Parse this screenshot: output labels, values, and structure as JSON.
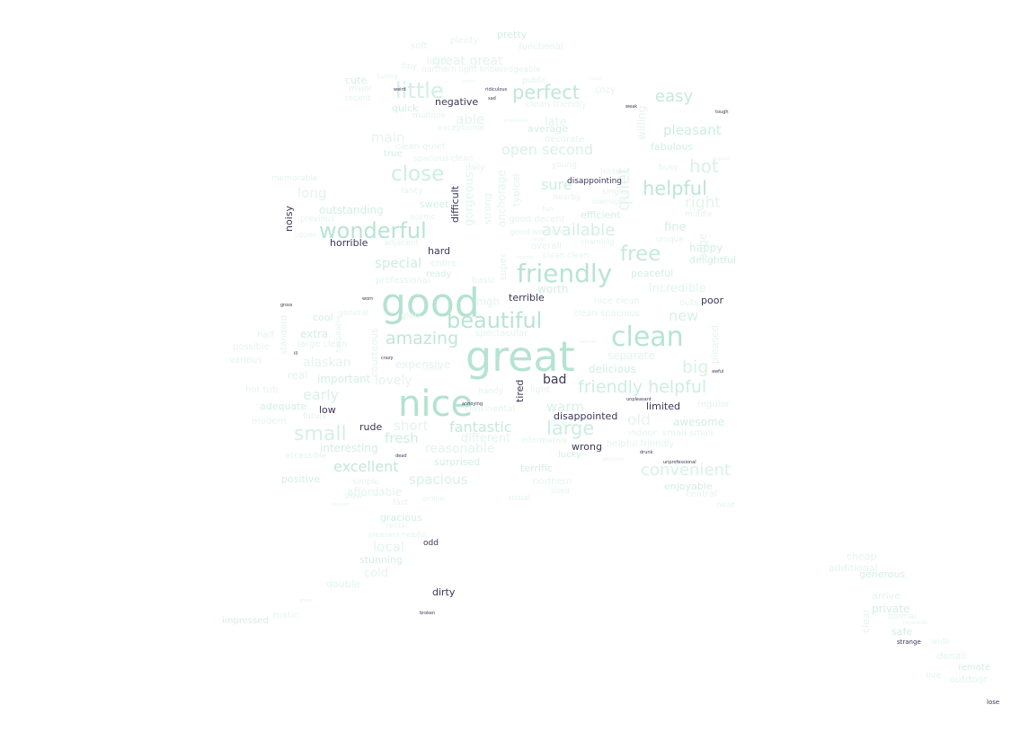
{
  "words": [
    {
      "text": "great",
      "color": "#b6e3d2"
    },
    {
      "text": "good",
      "color": "#b4e2d1"
    },
    {
      "text": "nice",
      "color": "#b3e2d0"
    },
    {
      "text": "clean",
      "color": "#b7e4d3"
    },
    {
      "text": "friendly",
      "color": "#b8e4d3"
    },
    {
      "text": "beautiful",
      "color": "#b8e4d3"
    },
    {
      "text": "wonderful",
      "color": "#b8e4d3"
    },
    {
      "text": "helpful",
      "color": "#bde6d6"
    },
    {
      "text": "close",
      "color": "#cdeee1"
    },
    {
      "text": "perfect",
      "color": "#c0e7d8"
    },
    {
      "text": "amazing",
      "color": "#c0e7d8"
    },
    {
      "text": "small",
      "color": "#d6f0e5"
    },
    {
      "text": "little",
      "color": "#d4efe4"
    },
    {
      "text": "friendly helpful",
      "color": "#cdeee1"
    },
    {
      "text": "excellent",
      "color": "#c3e8d9"
    },
    {
      "text": "large",
      "color": "#ccede0"
    },
    {
      "text": "fantastic",
      "color": "#c6e9db"
    },
    {
      "text": "available",
      "color": "#d4efe4"
    },
    {
      "text": "free",
      "color": "#c6e9db"
    },
    {
      "text": "convenient",
      "color": "#d9f1e7"
    },
    {
      "text": "easy",
      "color": "#c6e9db"
    },
    {
      "text": "hot",
      "color": "#d9f1e7"
    },
    {
      "text": "big",
      "color": "#d9f1e7"
    },
    {
      "text": "new",
      "color": "#d9f1e7"
    },
    {
      "text": "open second",
      "color": "#d9f1e7"
    },
    {
      "text": "early",
      "color": "#d9f1e7"
    },
    {
      "text": "pleasant",
      "color": "#cdeee1"
    },
    {
      "text": "sure",
      "color": "#cdeee1"
    },
    {
      "text": "warm",
      "color": "#d9f1e7"
    },
    {
      "text": "fresh",
      "color": "#cdeee1"
    },
    {
      "text": "special",
      "color": "#cdeee1"
    },
    {
      "text": "spacious",
      "color": "#d9f1e7"
    },
    {
      "text": "local",
      "color": "#e4f5ed"
    },
    {
      "text": "long",
      "color": "#e4f5ed"
    },
    {
      "text": "able",
      "color": "#e4f5ed"
    },
    {
      "text": "main",
      "color": "#e4f5ed"
    },
    {
      "text": "short",
      "color": "#e4f5ed"
    },
    {
      "text": "cold",
      "color": "#e4f5ed"
    },
    {
      "text": "old",
      "color": "#e4f5ed"
    },
    {
      "text": "right",
      "color": "#e4f5ed"
    },
    {
      "text": "great great",
      "color": "#e4f5ed"
    },
    {
      "text": "alaskan",
      "color": "#e4f5ed"
    },
    {
      "text": "lovely",
      "color": "#e4f5ed"
    },
    {
      "text": "outstanding",
      "color": "#d4efe4"
    },
    {
      "text": "delicious",
      "color": "#d4efe4"
    },
    {
      "text": "fine",
      "color": "#d4efe4"
    },
    {
      "text": "happy",
      "color": "#d4efe4"
    },
    {
      "text": "important",
      "color": "#d4efe4"
    },
    {
      "text": "awesome",
      "color": "#d4efe4"
    },
    {
      "text": "interesting",
      "color": "#d4efe4"
    },
    {
      "text": "positive",
      "color": "#d4efe4"
    },
    {
      "text": "surprised",
      "color": "#d4efe4"
    },
    {
      "text": "terrific",
      "color": "#d4efe4"
    },
    {
      "text": "stunning",
      "color": "#d4efe4"
    },
    {
      "text": "gracious",
      "color": "#d4efe4"
    },
    {
      "text": "enjoyable",
      "color": "#d4efe4"
    },
    {
      "text": "adequate",
      "color": "#d4efe4"
    },
    {
      "text": "efficient",
      "color": "#d4efe4"
    },
    {
      "text": "peaceful",
      "color": "#d4efe4"
    },
    {
      "text": "fabulous",
      "color": "#d4efe4"
    },
    {
      "text": "worth",
      "color": "#d4efe4"
    },
    {
      "text": "cool",
      "color": "#d4efe4"
    },
    {
      "text": "extra",
      "color": "#d4efe4"
    },
    {
      "text": "pretty",
      "color": "#d4efe4"
    },
    {
      "text": "cute",
      "color": "#d4efe4"
    },
    {
      "text": "quick",
      "color": "#d4efe4"
    },
    {
      "text": "average",
      "color": "#d4efe4"
    },
    {
      "text": "safe",
      "color": "#d4efe4"
    },
    {
      "text": "generous",
      "color": "#d4efe4"
    },
    {
      "text": "private",
      "color": "#d4efe4"
    },
    {
      "text": "remote",
      "color": "#d4efe4"
    },
    {
      "text": "impressed",
      "color": "#d4efe4"
    },
    {
      "text": "lucky",
      "color": "#d4efe4"
    },
    {
      "text": "ready",
      "color": "#d4efe4"
    },
    {
      "text": "true",
      "color": "#d4efe4"
    },
    {
      "text": "sweet",
      "color": "#d4efe4"
    },
    {
      "text": "delightful",
      "color": "#d4efe4"
    },
    {
      "text": "reasonable",
      "color": "#e4f5ed"
    },
    {
      "text": "expensive",
      "color": "#e4f5ed"
    },
    {
      "text": "different",
      "color": "#e4f5ed"
    },
    {
      "text": "incredible",
      "color": "#e4f5ed"
    },
    {
      "text": "separate",
      "color": "#e4f5ed"
    },
    {
      "text": "late",
      "color": "#e4f5ed"
    },
    {
      "text": "real",
      "color": "#e4f5ed"
    },
    {
      "text": "double",
      "color": "#e4f5ed"
    },
    {
      "text": "affordable",
      "color": "#e4f5ed"
    },
    {
      "text": "northern",
      "color": "#e4f5ed"
    },
    {
      "text": "central",
      "color": "#e4f5ed"
    },
    {
      "text": "additional",
      "color": "#e4f5ed"
    },
    {
      "text": "arrive",
      "color": "#e4f5ed"
    },
    {
      "text": "outdoor",
      "color": "#e4f5ed"
    },
    {
      "text": "denali",
      "color": "#e4f5ed"
    },
    {
      "text": "cheap",
      "color": "#e4f5ed"
    },
    {
      "text": "rustic",
      "color": "#e4f5ed"
    },
    {
      "text": "plenty",
      "color": "#e4f5ed"
    },
    {
      "text": "soft",
      "color": "#e4f5ed"
    },
    {
      "text": "functional",
      "color": "#e4f5ed"
    },
    {
      "text": "loud",
      "color": "#e4f5ed"
    },
    {
      "text": "northern light knowledgeable",
      "color": "#e4f5ed"
    },
    {
      "text": "tiny",
      "color": "#e4f5ed"
    },
    {
      "text": "public",
      "color": "#e4f5ed"
    },
    {
      "text": "cozy",
      "color": "#e4f5ed"
    },
    {
      "text": "major",
      "color": "#e4f5ed"
    },
    {
      "text": "recent",
      "color": "#e4f5ed"
    },
    {
      "text": "sunny",
      "color": "#e4f5ed"
    },
    {
      "text": "clean friendly",
      "color": "#e4f5ed"
    },
    {
      "text": "multiple",
      "color": "#e4f5ed"
    },
    {
      "text": "exceptional",
      "color": "#e4f5ed"
    },
    {
      "text": "decorate",
      "color": "#e4f5ed"
    },
    {
      "text": "clean quiet",
      "color": "#e4f5ed"
    },
    {
      "text": "spacious clean",
      "color": "#e4f5ed"
    },
    {
      "text": "young",
      "color": "#e4f5ed"
    },
    {
      "text": "fancy",
      "color": "#e4f5ed"
    },
    {
      "text": "daily",
      "color": "#e4f5ed"
    },
    {
      "text": "memorable",
      "color": "#e4f5ed"
    },
    {
      "text": "previous",
      "color": "#e4f5ed"
    },
    {
      "text": "scenic",
      "color": "#e4f5ed"
    },
    {
      "text": "upper",
      "color": "#e4f5ed"
    },
    {
      "text": "adjacent",
      "color": "#e4f5ed"
    },
    {
      "text": "good western",
      "color": "#e4f5ed"
    },
    {
      "text": "overall",
      "color": "#e4f5ed"
    },
    {
      "text": "unique",
      "color": "#e4f5ed"
    },
    {
      "text": "middle",
      "color": "#e4f5ed"
    },
    {
      "text": "single",
      "color": "#e4f5ed"
    },
    {
      "text": "nearby",
      "color": "#e4f5ed"
    },
    {
      "text": "fun",
      "color": "#e4f5ed"
    },
    {
      "text": "overnight",
      "color": "#e4f5ed"
    },
    {
      "text": "historic",
      "color": "#e4f5ed"
    },
    {
      "text": "busy",
      "color": "#e4f5ed"
    },
    {
      "text": "good decent",
      "color": "#e4f5ed"
    },
    {
      "text": "charming",
      "color": "#e4f5ed"
    },
    {
      "text": "clean clean",
      "color": "#e4f5ed"
    },
    {
      "text": "entire",
      "color": "#e4f5ed"
    },
    {
      "text": "professional",
      "color": "#e4f5ed"
    },
    {
      "text": "basic",
      "color": "#e4f5ed"
    },
    {
      "text": "high",
      "color": "#e4f5ed"
    },
    {
      "text": "nice clean",
      "color": "#e4f5ed"
    },
    {
      "text": "outside",
      "color": "#e4f5ed"
    },
    {
      "text": "clean spacious",
      "color": "#e4f5ed"
    },
    {
      "text": "spectacular",
      "color": "#e4f5ed"
    },
    {
      "text": "general",
      "color": "#e4f5ed"
    },
    {
      "text": "glad",
      "color": "#e4f5ed"
    },
    {
      "text": "half",
      "color": "#e4f5ed"
    },
    {
      "text": "large clean",
      "color": "#e4f5ed"
    },
    {
      "text": "possible",
      "color": "#e4f5ed"
    },
    {
      "text": "various",
      "color": "#e4f5ed"
    },
    {
      "text": "hot tub",
      "color": "#e4f5ed"
    },
    {
      "text": "modern",
      "color": "#e4f5ed"
    },
    {
      "text": "future",
      "color": "#e4f5ed"
    },
    {
      "text": "accessible",
      "color": "#e4f5ed"
    },
    {
      "text": "simple",
      "color": "#e4f5ed"
    },
    {
      "text": "slow",
      "color": "#e4f5ed"
    },
    {
      "text": "fast",
      "color": "#e4f5ed"
    },
    {
      "text": "usual",
      "color": "#e4f5ed"
    },
    {
      "text": "neat",
      "color": "#e4f5ed"
    },
    {
      "text": "indoor",
      "color": "#e4f5ed"
    },
    {
      "text": "small small",
      "color": "#e4f5ed"
    },
    {
      "text": "helpful friendly",
      "color": "#e4f5ed"
    },
    {
      "text": "dry",
      "color": "#e4f5ed"
    },
    {
      "text": "informative",
      "color": "#e4f5ed"
    },
    {
      "text": "handy",
      "color": "#e4f5ed"
    },
    {
      "text": "light",
      "color": "#e4f5ed"
    },
    {
      "text": "regular",
      "color": "#e4f5ed"
    },
    {
      "text": "continental",
      "color": "#e4f5ed"
    },
    {
      "text": "normal",
      "color": "#e4f5ed"
    },
    {
      "text": "live",
      "color": "#e4f5ed"
    },
    {
      "text": "wide",
      "color": "#e4f5ed"
    },
    {
      "text": "pleasant helpful",
      "color": "#e4f5ed"
    },
    {
      "text": "rental",
      "color": "#e4f5ed"
    },
    {
      "text": "sized",
      "color": "#e4f5ed"
    },
    {
      "text": "online",
      "color": "#e4f5ed"
    },
    {
      "text": "quiet",
      "color": "#e4f5ed"
    },
    {
      "text": "gorgeous",
      "color": "#e4f5ed"
    },
    {
      "text": "strong",
      "color": "#e4f5ed"
    },
    {
      "text": "typical",
      "color": "#e4f5ed"
    },
    {
      "text": "anchorage",
      "color": "#e4f5ed"
    },
    {
      "text": "super",
      "color": "#e4f5ed"
    },
    {
      "text": "courteous",
      "color": "#e4f5ed"
    },
    {
      "text": "huge",
      "color": "#e4f5ed"
    },
    {
      "text": "pleased",
      "color": "#e4f5ed"
    },
    {
      "text": "standard",
      "color": "#e4f5ed"
    },
    {
      "text": "willing",
      "color": "#e4f5ed"
    },
    {
      "text": "clear",
      "color": "#e4f5ed"
    },
    {
      "text": "hospitable",
      "color": "#e4f5ed"
    },
    {
      "text": "bright",
      "color": "#e4f5ed"
    },
    {
      "text": "negative",
      "color": "#3d3659"
    },
    {
      "text": "terrible",
      "color": "#3d3659"
    },
    {
      "text": "bad",
      "color": "#3d3659"
    },
    {
      "text": "disappointed",
      "color": "#3d3659"
    },
    {
      "text": "horrible",
      "color": "#3d3659"
    },
    {
      "text": "hard",
      "color": "#3d3659"
    },
    {
      "text": "poor",
      "color": "#3d3659"
    },
    {
      "text": "limited",
      "color": "#3d3659"
    },
    {
      "text": "low",
      "color": "#3d3659"
    },
    {
      "text": "rude",
      "color": "#3d3659"
    },
    {
      "text": "wrong",
      "color": "#3d3659"
    },
    {
      "text": "dirty",
      "color": "#3d3659"
    },
    {
      "text": "odd",
      "color": "#3d3659"
    },
    {
      "text": "disappointing",
      "color": "#3d3659"
    },
    {
      "text": "noisy",
      "color": "#3d3659"
    },
    {
      "text": "difficult",
      "color": "#3d3659"
    },
    {
      "text": "tired",
      "color": "#3d3659"
    },
    {
      "text": "strange",
      "color": "#3d3659"
    },
    {
      "text": "lose",
      "color": "#3d3659"
    },
    {
      "text": "broken",
      "color": "#3d3659"
    },
    {
      "text": "weird",
      "color": "#3d3659"
    },
    {
      "text": "sad",
      "color": "#3d3659"
    },
    {
      "text": "ridiculous",
      "color": "#3d3659"
    },
    {
      "text": "tough",
      "color": "#3d3659"
    },
    {
      "text": "awful",
      "color": "#3d3659"
    },
    {
      "text": "dead",
      "color": "#3d3659"
    },
    {
      "text": "drunk",
      "color": "#3d3659"
    },
    {
      "text": "unprofessional",
      "color": "#3d3659"
    },
    {
      "text": "ill",
      "color": "#3d3659"
    },
    {
      "text": "crazy",
      "color": "#3d3659"
    },
    {
      "text": "gross",
      "color": "#3d3659"
    },
    {
      "text": "worn",
      "color": "#3d3659"
    },
    {
      "text": "annoying",
      "color": "#3d3659"
    },
    {
      "text": "unpleasant",
      "color": "#3d3659"
    },
    {
      "text": "attractive",
      "color": "#e4f5ed"
    },
    {
      "text": "acceptable",
      "color": "#e4f5ed"
    },
    {
      "text": "healthy",
      "color": "#e4f5ed"
    },
    {
      "text": "certain",
      "color": "#e4f5ed"
    },
    {
      "text": "responsive",
      "color": "#e4f5ed"
    },
    {
      "text": "minor",
      "color": "#e4f5ed"
    },
    {
      "text": "popular",
      "color": "#e4f5ed"
    },
    {
      "text": "funny",
      "color": "#e4f5ed"
    },
    {
      "text": "romantic",
      "color": "#e4f5ed"
    },
    {
      "text": "natural",
      "color": "#e4f5ed"
    },
    {
      "text": "grand",
      "color": "#e4f5ed"
    },
    {
      "text": "relaxed",
      "color": "#e4f5ed"
    },
    {
      "text": "weak",
      "color": "#3d3659"
    }
  ]
}
